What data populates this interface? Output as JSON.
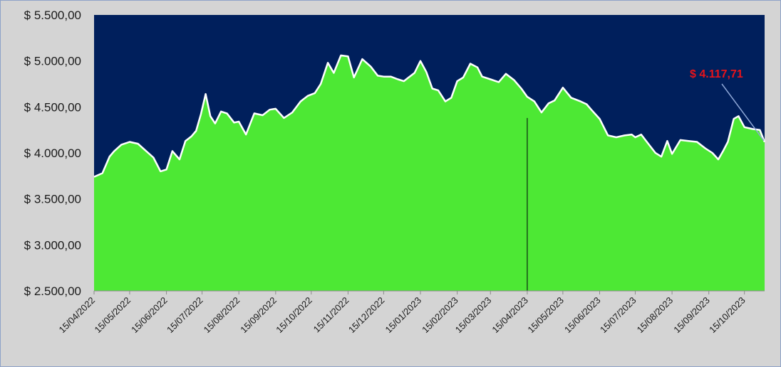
{
  "colors": {
    "plot_background": "#001f5c",
    "area_fill": "#4de834",
    "area_edge": "#ffffff",
    "annotation_text": "#e8131a",
    "annotation_line": "#8fa8d8",
    "frame_background": "#d4d4d4"
  },
  "chart_data": {
    "type": "area",
    "title": "",
    "xlabel": "",
    "ylabel": "",
    "ylim": [
      2500,
      5500
    ],
    "xlim": [
      "2022-04-15",
      "2023-11-01"
    ],
    "y_ticks": [
      2500,
      3000,
      3500,
      4000,
      4500,
      5000,
      5500
    ],
    "y_tick_labels": [
      "$ 2.500,00",
      "$ 3.000,00",
      "$ 3.500,00",
      "$ 4.000,00",
      "$ 4.500,00",
      "$ 5.000,00",
      "$ 5.500,00"
    ],
    "x_ticks": [
      "2022-04-15",
      "2022-05-15",
      "2022-06-15",
      "2022-07-15",
      "2022-08-15",
      "2022-09-15",
      "2022-10-15",
      "2022-11-15",
      "2022-12-15",
      "2023-01-15",
      "2023-02-15",
      "2023-03-15",
      "2023-04-15",
      "2023-05-15",
      "2023-06-15",
      "2023-07-15",
      "2023-08-15",
      "2023-09-15",
      "2023-10-15"
    ],
    "x_tick_labels": [
      "15/04/2022",
      "15/05/2022",
      "15/06/2022",
      "15/07/2022",
      "15/08/2022",
      "15/09/2022",
      "15/10/2022",
      "15/11/2022",
      "15/12/2022",
      "15/01/2023",
      "15/02/2023",
      "15/03/2023",
      "15/04/2023",
      "15/05/2023",
      "15/06/2023",
      "15/07/2023",
      "15/08/2023",
      "15/09/2023",
      "15/10/2023"
    ],
    "grid": false,
    "legend": "none",
    "series": [
      {
        "x": [
          "2022-04-15",
          "2022-04-22",
          "2022-04-28",
          "2022-05-02",
          "2022-05-08",
          "2022-05-15",
          "2022-05-22",
          "2022-05-28",
          "2022-06-04",
          "2022-06-10",
          "2022-06-15",
          "2022-06-20",
          "2022-06-26",
          "2022-07-01",
          "2022-07-06",
          "2022-07-10",
          "2022-07-14",
          "2022-07-18",
          "2022-07-22",
          "2022-07-26",
          "2022-07-31",
          "2022-08-05",
          "2022-08-11",
          "2022-08-15",
          "2022-08-21",
          "2022-08-28",
          "2022-09-04",
          "2022-09-10",
          "2022-09-15",
          "2022-09-22",
          "2022-09-29",
          "2022-10-06",
          "2022-10-12",
          "2022-10-18",
          "2022-10-23",
          "2022-10-29",
          "2022-11-03",
          "2022-11-09",
          "2022-11-15",
          "2022-11-20",
          "2022-11-27",
          "2022-12-04",
          "2022-12-10",
          "2022-12-15",
          "2022-12-21",
          "2022-12-27",
          "2023-01-01",
          "2023-01-05",
          "2023-01-10",
          "2023-01-15",
          "2023-01-20",
          "2023-01-25",
          "2023-01-30",
          "2023-02-05",
          "2023-02-10",
          "2023-02-15",
          "2023-02-20",
          "2023-02-26",
          "2023-03-04",
          "2023-03-08",
          "2023-03-15",
          "2023-03-22",
          "2023-03-28",
          "2023-04-04",
          "2023-04-10",
          "2023-04-15",
          "2023-04-21",
          "2023-04-27",
          "2023-05-03",
          "2023-05-08",
          "2023-05-15",
          "2023-05-22",
          "2023-05-30",
          "2023-06-04",
          "2023-06-08",
          "2023-06-15",
          "2023-06-22",
          "2023-06-29",
          "2023-07-06",
          "2023-07-12",
          "2023-07-15",
          "2023-07-20",
          "2023-07-26",
          "2023-08-01",
          "2023-08-06",
          "2023-08-11",
          "2023-08-15",
          "2023-08-22",
          "2023-08-29",
          "2023-09-05",
          "2023-09-12",
          "2023-09-18",
          "2023-09-23",
          "2023-09-27",
          "2023-10-01",
          "2023-10-06",
          "2023-10-10",
          "2023-10-15",
          "2023-10-22",
          "2023-10-28",
          "2023-11-01"
        ],
        "values": [
          3740,
          3780,
          3960,
          4020,
          4090,
          4120,
          4100,
          4030,
          3950,
          3800,
          3820,
          4020,
          3930,
          4130,
          4180,
          4240,
          4420,
          4640,
          4400,
          4320,
          4450,
          4430,
          4330,
          4340,
          4200,
          4430,
          4410,
          4470,
          4480,
          4380,
          4440,
          4560,
          4620,
          4650,
          4750,
          4980,
          4870,
          5060,
          5050,
          4820,
          5020,
          4940,
          4840,
          4830,
          4830,
          4800,
          4780,
          4820,
          4870,
          5000,
          4880,
          4700,
          4680,
          4560,
          4600,
          4780,
          4820,
          4970,
          4930,
          4830,
          4800,
          4770,
          4860,
          4790,
          4700,
          4610,
          4560,
          4440,
          4540,
          4570,
          4710,
          4600,
          4560,
          4530,
          4470,
          4370,
          4190,
          4170,
          4190,
          4200,
          4170,
          4200,
          4100,
          4000,
          3960,
          4130,
          3990,
          4140,
          4130,
          4120,
          4050,
          4000,
          3930,
          4020,
          4120,
          4370,
          4400,
          4280,
          4260,
          4250,
          4118
        ],
        "area_fill": "#4de834"
      }
    ],
    "reference_line": {
      "x": "2023-04-15",
      "from": 2500,
      "to": 4380
    },
    "annotation": {
      "text": "$ 4.117,71",
      "value": 4117.71,
      "x": "2023-11-01"
    }
  }
}
